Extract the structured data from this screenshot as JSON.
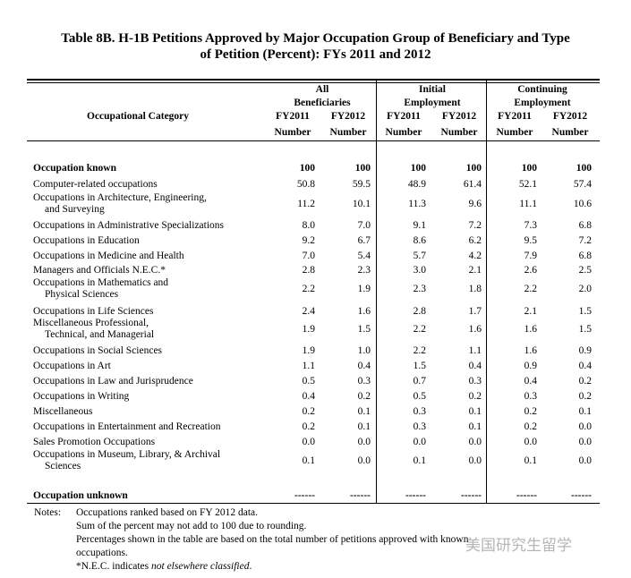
{
  "title": [
    "Table 8B. H-1B Petitions Approved by Major Occupation Group of Beneficiary and Type",
    "of Petition (Percent):  FYs 2011 and 2012"
  ],
  "table": {
    "category_header": "Occupational Category",
    "groups": [
      {
        "title": [
          "All",
          "Beneficiaries"
        ],
        "years": [
          "FY2011",
          "FY2012"
        ],
        "units": [
          "Number",
          "Number"
        ]
      },
      {
        "title": [
          "Initial",
          "Employment"
        ],
        "years": [
          "FY2011",
          "FY2012"
        ],
        "units": [
          "Number",
          "Number"
        ]
      },
      {
        "title": [
          "Continuing",
          "Employment"
        ],
        "years": [
          "FY2011",
          "FY2012"
        ],
        "units": [
          "Number",
          "Number"
        ]
      }
    ],
    "known": {
      "label": [
        "Occupation known"
      ],
      "values": [
        "100",
        "100",
        "100",
        "100",
        "100",
        "100"
      ]
    },
    "rows": [
      {
        "label": [
          "Computer-related occupations"
        ],
        "values": [
          "50.8",
          "59.5",
          "48.9",
          "61.4",
          "52.1",
          "57.4"
        ]
      },
      {
        "label": [
          "Occupations in Architecture, Engineering,",
          "and Surveying"
        ],
        "values": [
          "11.2",
          "10.1",
          "11.3",
          "9.6",
          "11.1",
          "10.6"
        ]
      },
      {
        "label": [
          "Occupations in Administrative Specializations"
        ],
        "values": [
          "8.0",
          "7.0",
          "9.1",
          "7.2",
          "7.3",
          "6.8"
        ]
      },
      {
        "label": [
          "Occupations in Education"
        ],
        "values": [
          "9.2",
          "6.7",
          "8.6",
          "6.2",
          "9.5",
          "7.2"
        ]
      },
      {
        "label": [
          "Occupations in Medicine and Health"
        ],
        "values": [
          "7.0",
          "5.4",
          "5.7",
          "4.2",
          "7.9",
          "6.8"
        ]
      },
      {
        "label": [
          "Managers and Officials N.E.C.*"
        ],
        "values": [
          "2.8",
          "2.3",
          "3.0",
          "2.1",
          "2.6",
          "2.5"
        ]
      },
      {
        "label": [
          "Occupations in Mathematics and",
          "Physical Sciences"
        ],
        "values": [
          "2.2",
          "1.9",
          "2.3",
          "1.8",
          "2.2",
          "2.0"
        ]
      },
      {
        "label": [
          "Occupations in Life Sciences"
        ],
        "values": [
          "2.4",
          "1.6",
          "2.8",
          "1.7",
          "2.1",
          "1.5"
        ]
      },
      {
        "label": [
          "Miscellaneous Professional,",
          "Technical, and Managerial"
        ],
        "values": [
          "1.9",
          "1.5",
          "2.2",
          "1.6",
          "1.6",
          "1.5"
        ]
      },
      {
        "label": [
          "Occupations in Social Sciences"
        ],
        "values": [
          "1.9",
          "1.0",
          "2.2",
          "1.1",
          "1.6",
          "0.9"
        ]
      },
      {
        "label": [
          "Occupations in Art"
        ],
        "values": [
          "1.1",
          "0.4",
          "1.5",
          "0.4",
          "0.9",
          "0.4"
        ]
      },
      {
        "label": [
          "Occupations in Law and Jurisprudence"
        ],
        "values": [
          "0.5",
          "0.3",
          "0.7",
          "0.3",
          "0.4",
          "0.2"
        ]
      },
      {
        "label": [
          "Occupations in Writing"
        ],
        "values": [
          "0.4",
          "0.2",
          "0.5",
          "0.2",
          "0.3",
          "0.2"
        ]
      },
      {
        "label": [
          "Miscellaneous"
        ],
        "values": [
          "0.2",
          "0.1",
          "0.3",
          "0.1",
          "0.2",
          "0.1"
        ]
      },
      {
        "label": [
          "Occupations in Entertainment and Recreation"
        ],
        "values": [
          "0.2",
          "0.1",
          "0.3",
          "0.1",
          "0.2",
          "0.0"
        ]
      },
      {
        "label": [
          "Sales Promotion Occupations"
        ],
        "values": [
          "0.0",
          "0.0",
          "0.0",
          "0.0",
          "0.0",
          "0.0"
        ]
      },
      {
        "label": [
          "Occupations in Museum, Library, & Archival",
          "Sciences"
        ],
        "values": [
          "0.1",
          "0.0",
          "0.1",
          "0.0",
          "0.1",
          "0.0"
        ]
      }
    ],
    "unknown": {
      "label": [
        "Occupation unknown"
      ],
      "values": [
        "------",
        "------",
        "------",
        "------",
        "------",
        "------"
      ]
    }
  },
  "notes": {
    "label": "Notes:",
    "lines": [
      "Occupations ranked based on FY 2012 data.",
      "Sum of the percent may not add to 100 due to rounding.",
      "Percentages shown in the table are based on the total number of petitions approved with known",
      "occupations."
    ],
    "last": {
      "text": "*N.E.C. indicates ",
      "emphasis": "not elsewhere classified",
      "end": "."
    }
  },
  "watermark": "美国研究生留学"
}
